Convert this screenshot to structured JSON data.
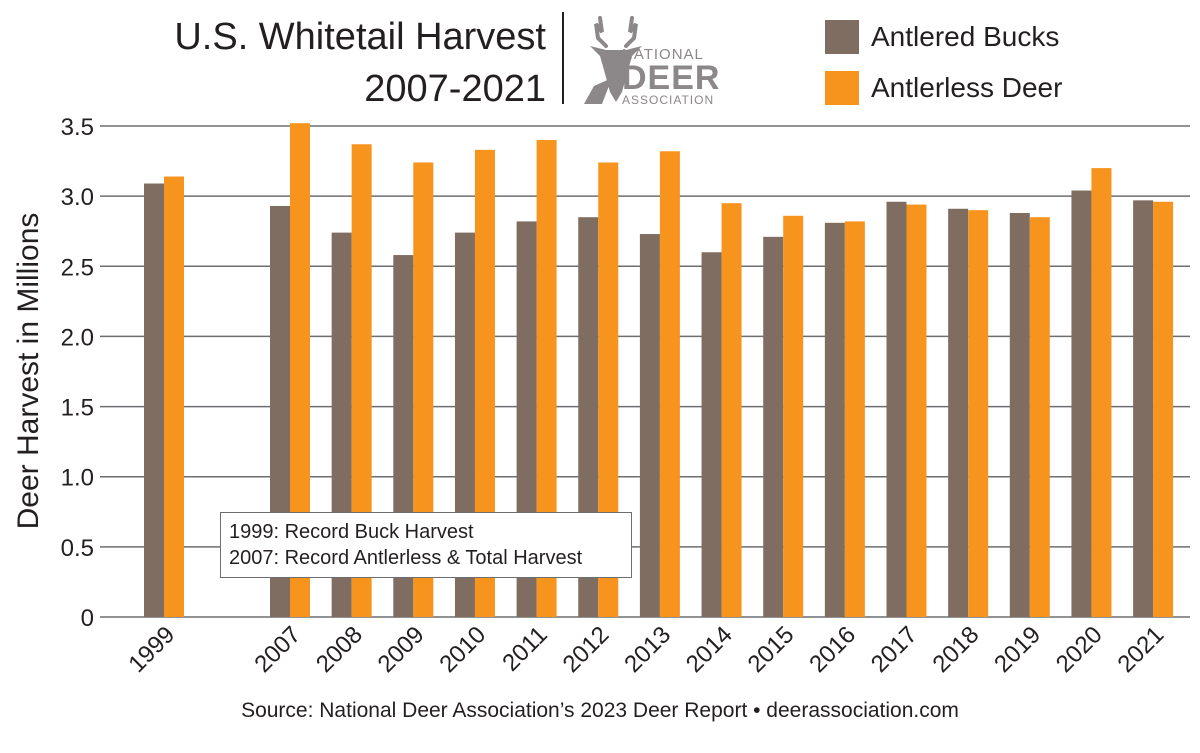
{
  "header": {
    "title_line1": "U.S. Whitetail Harvest",
    "title_line2": "2007-2021"
  },
  "logo": {
    "icon": "deer-head-icon",
    "line1": "NATIONAL",
    "line2": "DEER",
    "line3": "ASSOCIATION",
    "color": "#8c8789"
  },
  "annotation": {
    "line1": "1999: Record Buck Harvest",
    "line2": "2007: Record Antlerless & Total Harvest"
  },
  "source": "Source: National Deer Association’s 2023 Deer Report • deerassociation.com",
  "chart_data": {
    "type": "bar",
    "title": "U.S. Whitetail Harvest 2007-2021",
    "ylabel": "Deer Harvest in Millions",
    "xlabel": "",
    "ylim": [
      0,
      3.5
    ],
    "yticks": [
      0,
      0.5,
      1.0,
      1.5,
      2.0,
      2.5,
      3.0,
      3.5
    ],
    "ytick_labels": [
      "0",
      "0.5",
      "1.0",
      "1.5",
      "2.0",
      "2.5",
      "3.0",
      "3.5"
    ],
    "grid": true,
    "legend_position": "top-right",
    "categories": [
      "1999",
      "2007",
      "2008",
      "2009",
      "2010",
      "2011",
      "2012",
      "2013",
      "2014",
      "2015",
      "2016",
      "2017",
      "2018",
      "2019",
      "2020",
      "2021"
    ],
    "series": [
      {
        "name": "Antlered Bucks",
        "color": "#7f6d62",
        "values": [
          3.09,
          2.93,
          2.74,
          2.58,
          2.74,
          2.82,
          2.85,
          2.73,
          2.6,
          2.71,
          2.81,
          2.96,
          2.91,
          2.88,
          3.04,
          2.97
        ]
      },
      {
        "name": "Antlerless Deer",
        "color": "#f7941d",
        "values": [
          3.14,
          3.52,
          3.37,
          3.24,
          3.33,
          3.4,
          3.24,
          3.32,
          2.95,
          2.86,
          2.82,
          2.94,
          2.9,
          2.85,
          3.2,
          2.96
        ]
      }
    ]
  }
}
